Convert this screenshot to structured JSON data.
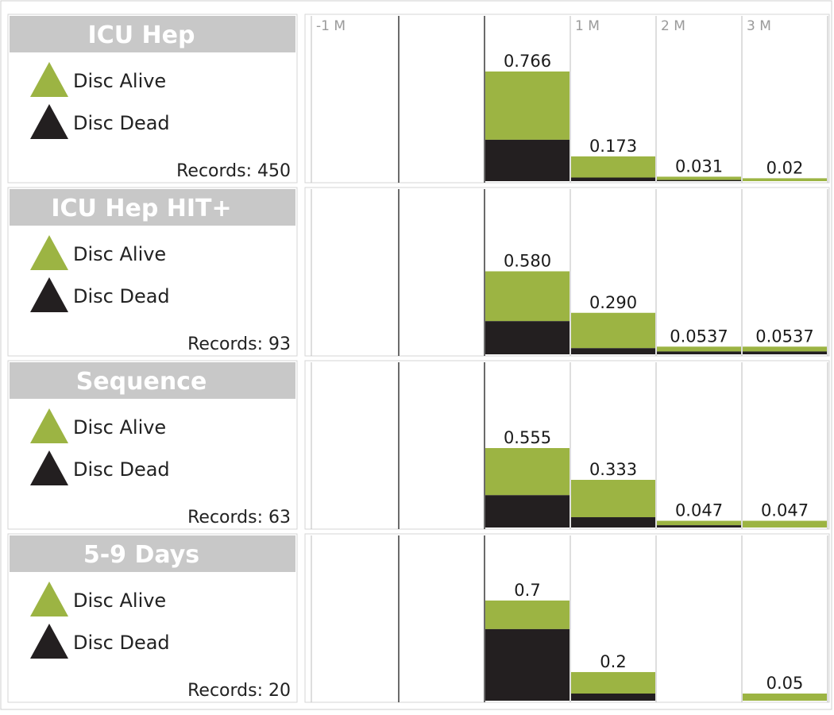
{
  "chart_data": {
    "type": "bar",
    "stacked": true,
    "x_ticks": [
      "-1 M",
      "",
      "",
      "1 M",
      "2 M",
      "3 M"
    ],
    "legend": [
      {
        "label": "Disc Alive",
        "color": "#9cb443",
        "icon": "triangle-icon"
      },
      {
        "label": "Disc Dead",
        "color": "#231f20",
        "icon": "triangle-icon"
      }
    ],
    "panels": [
      {
        "title": "ICU Hep",
        "records_label": "Records: 450",
        "bars": [
          {
            "bin": 3,
            "total": 0.766,
            "label": "0.766",
            "dead": 0.289,
            "alive": 0.477
          },
          {
            "bin": 4,
            "total": 0.173,
            "label": "0.173",
            "dead": 0.025,
            "alive": 0.148
          },
          {
            "bin": 5,
            "total": 0.031,
            "label": "0.031",
            "dead": 0.008,
            "alive": 0.023
          },
          {
            "bin": 6,
            "total": 0.02,
            "label": "0.02",
            "dead": 0.0,
            "alive": 0.02
          }
        ]
      },
      {
        "title": "ICU Hep HIT+",
        "records_label": "Records: 93",
        "bars": [
          {
            "bin": 3,
            "total": 0.58,
            "label": "0.580",
            "dead": 0.232,
            "alive": 0.348
          },
          {
            "bin": 4,
            "total": 0.29,
            "label": "0.290",
            "dead": 0.043,
            "alive": 0.247
          },
          {
            "bin": 5,
            "total": 0.0537,
            "label": "0.0537",
            "dead": 0.02,
            "alive": 0.0337
          },
          {
            "bin": 6,
            "total": 0.0537,
            "label": "0.0537",
            "dead": 0.02,
            "alive": 0.0337
          }
        ]
      },
      {
        "title": "Sequence",
        "records_label": "Records: 63",
        "bars": [
          {
            "bin": 3,
            "total": 0.555,
            "label": "0.555",
            "dead": 0.226,
            "alive": 0.329
          },
          {
            "bin": 4,
            "total": 0.333,
            "label": "0.333",
            "dead": 0.072,
            "alive": 0.261
          },
          {
            "bin": 5,
            "total": 0.047,
            "label": "0.047",
            "dead": 0.016,
            "alive": 0.031
          },
          {
            "bin": 6,
            "total": 0.047,
            "label": "0.047",
            "dead": 0.0,
            "alive": 0.047
          }
        ]
      },
      {
        "title": "5-9 Days",
        "records_label": "Records: 20",
        "bars": [
          {
            "bin": 3,
            "total": 0.7,
            "label": "0.7",
            "dead": 0.5,
            "alive": 0.2
          },
          {
            "bin": 4,
            "total": 0.2,
            "label": "0.2",
            "dead": 0.05,
            "alive": 0.15
          },
          {
            "bin": 6,
            "total": 0.05,
            "label": "0.05",
            "dead": 0.0,
            "alive": 0.05
          }
        ]
      }
    ],
    "ylim": [
      0,
      1
    ],
    "grid": true
  },
  "colors": {
    "alive": "#9cb443",
    "dead": "#231f20",
    "title_bg": "#c8c8c8",
    "title_text": "#ffffff",
    "grid": "#bdbdbd",
    "center_line": "#3a3a3a"
  }
}
